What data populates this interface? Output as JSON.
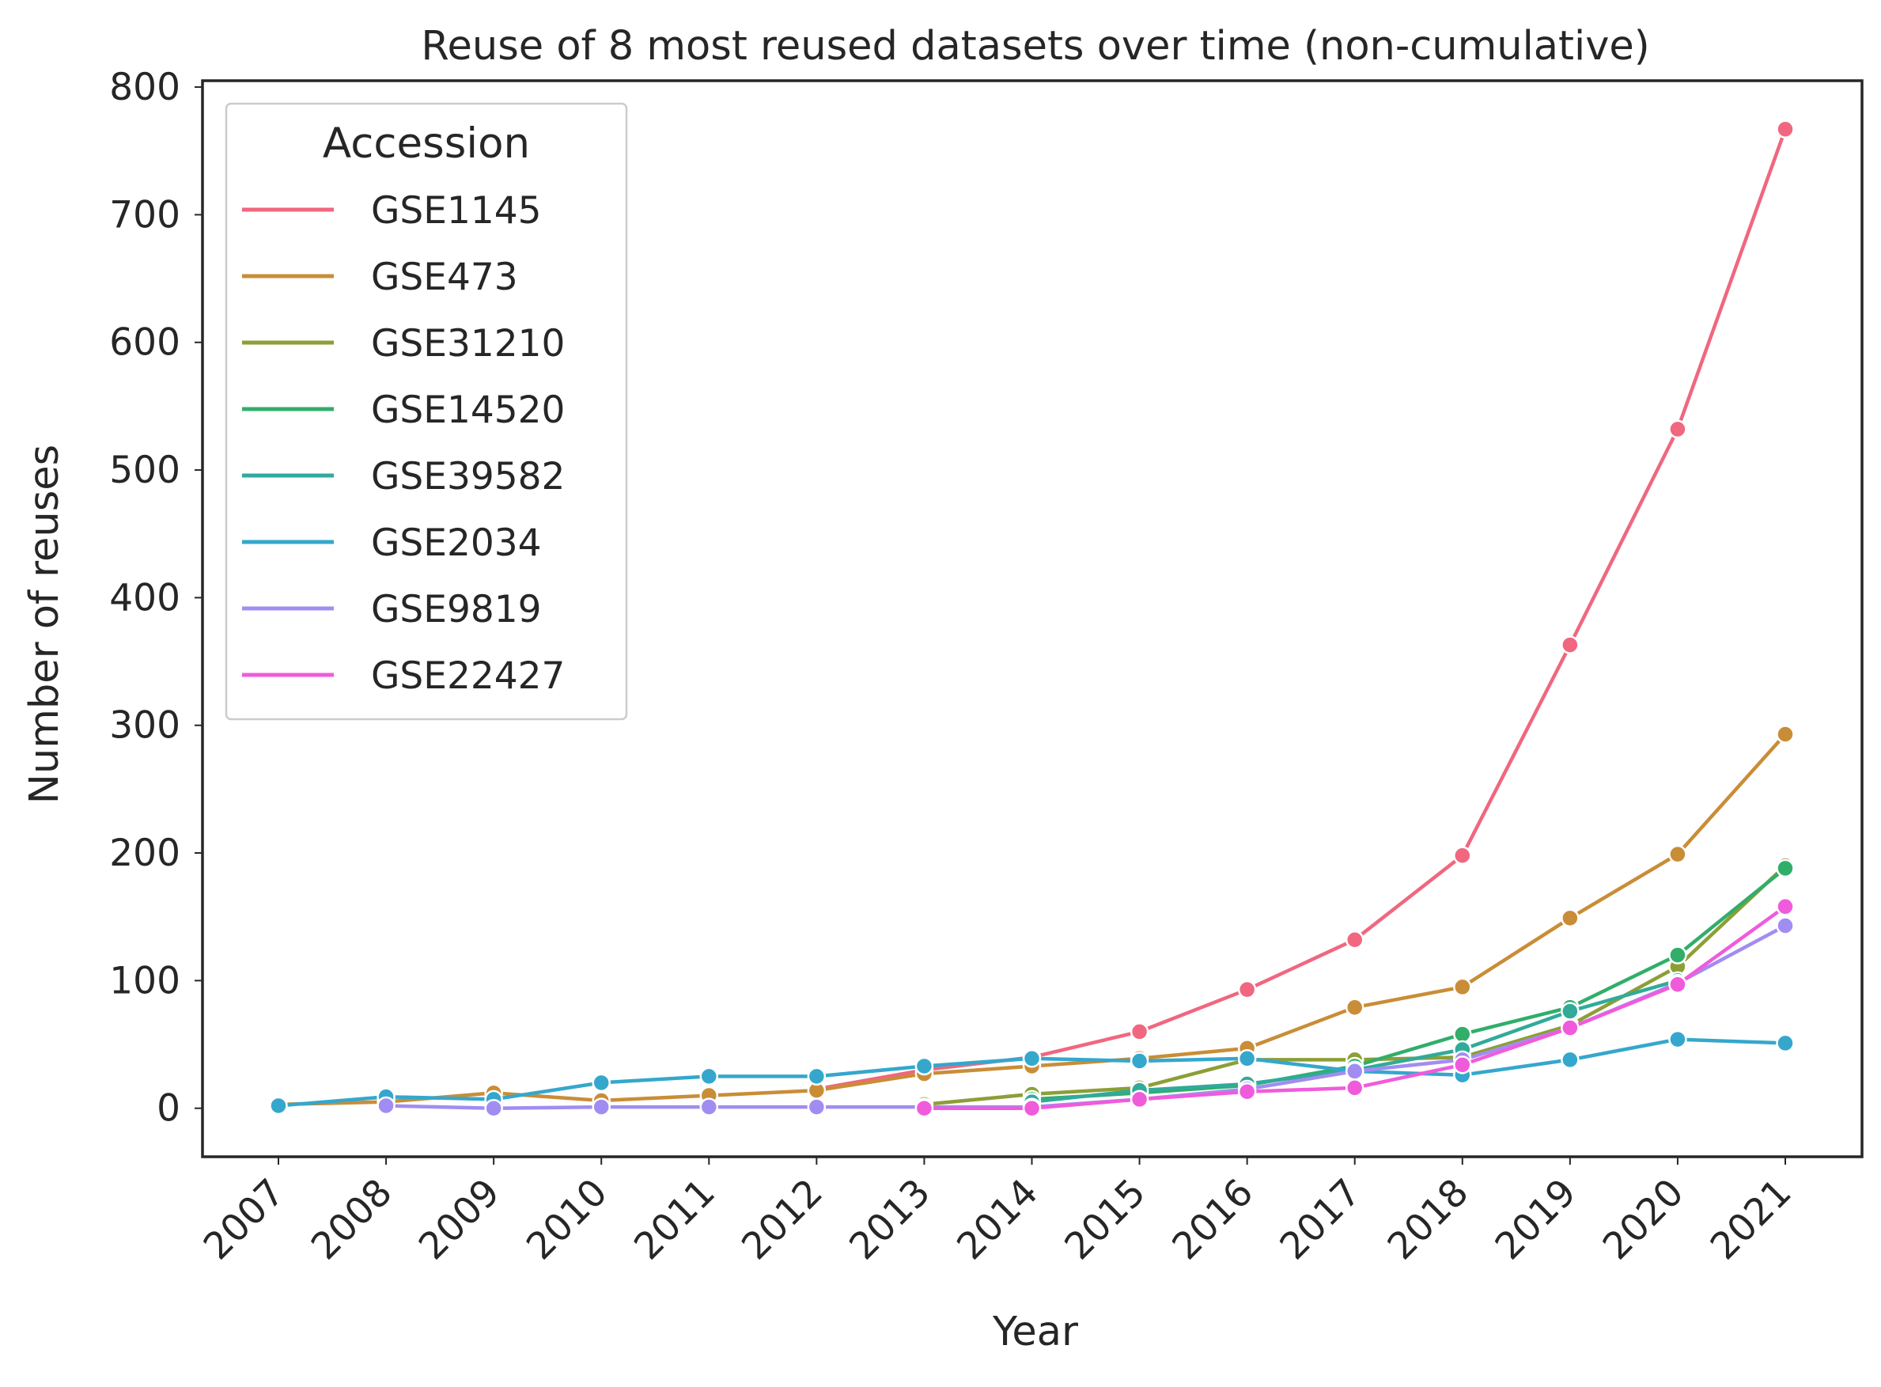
{
  "chart_data": {
    "type": "line",
    "title": "Reuse of 8 most reused datasets over time (non-cumulative)",
    "xlabel": "Year",
    "ylabel": "Number of reuses",
    "x": [
      "2007",
      "2008",
      "2009",
      "2010",
      "2011",
      "2012",
      "2013",
      "2014",
      "2015",
      "2016",
      "2017",
      "2018",
      "2019",
      "2020",
      "2021"
    ],
    "ylim": [
      -38,
      805
    ],
    "yticks": [
      0,
      100,
      200,
      300,
      400,
      500,
      600,
      700,
      800
    ],
    "grid": false,
    "legend": {
      "title": "Accession",
      "position": "top-left"
    },
    "series": [
      {
        "name": "GSE1145",
        "color": "#f0677f",
        "values": [
          null,
          null,
          null,
          null,
          null,
          15,
          30,
          40,
          60,
          93,
          132,
          198,
          363,
          532,
          767
        ]
      },
      {
        "name": "GSE473",
        "color": "#c98d37",
        "values": [
          3,
          5,
          12,
          6,
          10,
          14,
          27,
          33,
          39,
          47,
          79,
          95,
          149,
          199,
          293
        ]
      },
      {
        "name": "GSE31210",
        "color": "#8c9f35",
        "values": [
          null,
          null,
          null,
          null,
          null,
          null,
          3,
          11,
          16,
          38,
          38,
          40,
          65,
          111,
          190
        ]
      },
      {
        "name": "GSE14520",
        "color": "#31ae6a",
        "values": [
          null,
          null,
          null,
          null,
          null,
          null,
          null,
          7,
          12,
          18,
          33,
          58,
          79,
          120,
          188
        ]
      },
      {
        "name": "GSE39582",
        "color": "#31aa9a",
        "values": [
          null,
          null,
          null,
          null,
          null,
          null,
          null,
          5,
          14,
          19,
          30,
          46,
          76,
          100,
          null
        ]
      },
      {
        "name": "GSE2034",
        "color": "#35a7cc",
        "values": [
          2,
          9,
          7,
          20,
          25,
          25,
          33,
          39,
          37,
          39,
          29,
          26,
          38,
          54,
          51
        ]
      },
      {
        "name": "GSE9819",
        "color": "#a18df1",
        "values": [
          null,
          2,
          0,
          1,
          1,
          1,
          1,
          1,
          7,
          15,
          29,
          38,
          63,
          98,
          143
        ]
      },
      {
        "name": "GSE22427",
        "color": "#f05bdc",
        "values": [
          null,
          null,
          null,
          null,
          null,
          null,
          0,
          0,
          7,
          13,
          16,
          34,
          63,
          97,
          158
        ]
      }
    ]
  }
}
